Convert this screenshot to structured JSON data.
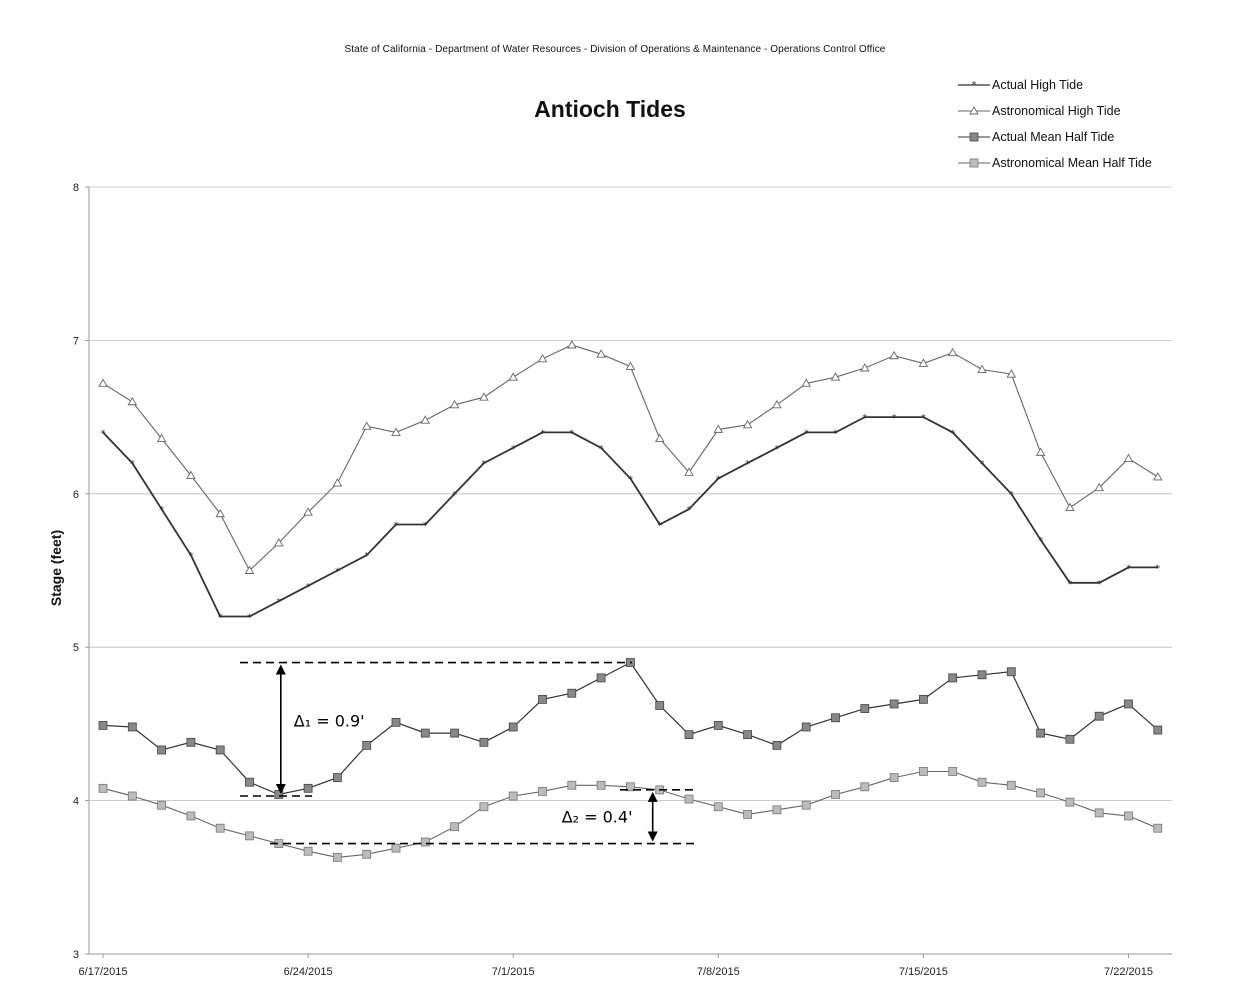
{
  "header": "State of California - Department of Water Resources - Division of Operations & Maintenance - Operations Control Office",
  "colors": {
    "axis": "#999999",
    "grid": "#bbbbbb",
    "actual": "#333333",
    "astronomical": "#666666",
    "annotation": "#000000"
  },
  "chart_data": {
    "type": "line",
    "title": "Antioch Tides",
    "xlabel": "",
    "ylabel": "Stage (feet)",
    "ylim": [
      3,
      8
    ],
    "yticks": [
      "3",
      "4",
      "5",
      "6",
      "7",
      "8"
    ],
    "xticks": [
      "6/17/2015",
      "6/24/2015",
      "7/1/2015",
      "7/8/2015",
      "7/15/2015",
      "7/22/2015"
    ],
    "grid": "horizontal",
    "legend": "top-right",
    "x": [
      "6/17/2015",
      "6/18/2015",
      "6/19/2015",
      "6/20/2015",
      "6/21/2015",
      "6/22/2015",
      "6/23/2015",
      "6/24/2015",
      "6/25/2015",
      "6/26/2015",
      "6/27/2015",
      "6/28/2015",
      "6/29/2015",
      "6/30/2015",
      "7/1/2015",
      "7/2/2015",
      "7/3/2015",
      "7/4/2015",
      "7/5/2015",
      "7/6/2015",
      "7/7/2015",
      "7/8/2015",
      "7/9/2015",
      "7/10/2015",
      "7/11/2015",
      "7/12/2015",
      "7/13/2015",
      "7/14/2015",
      "7/15/2015",
      "7/16/2015",
      "7/17/2015",
      "7/18/2015",
      "7/19/2015",
      "7/20/2015",
      "7/21/2015",
      "7/22/2015",
      "7/23/2015"
    ],
    "series": [
      {
        "name": "Actual High Tide",
        "marker": "star",
        "values": [
          6.4,
          6.2,
          5.9,
          5.6,
          5.2,
          5.2,
          5.3,
          5.4,
          5.5,
          5.6,
          5.8,
          5.8,
          6.0,
          6.2,
          6.3,
          6.4,
          6.4,
          6.3,
          6.1,
          5.8,
          5.9,
          6.1,
          6.2,
          6.3,
          6.4,
          6.4,
          6.5,
          6.5,
          6.5,
          6.4,
          6.2,
          6.0,
          5.7,
          5.42,
          5.42,
          5.52,
          5.52
        ]
      },
      {
        "name": "Astronomical High Tide",
        "marker": "triangle",
        "values": [
          6.72,
          6.6,
          6.36,
          6.12,
          5.87,
          5.5,
          5.68,
          5.88,
          6.07,
          6.44,
          6.4,
          6.48,
          6.58,
          6.63,
          6.76,
          6.88,
          6.97,
          6.91,
          6.83,
          6.36,
          6.14,
          6.42,
          6.45,
          6.58,
          6.72,
          6.76,
          6.82,
          6.9,
          6.85,
          6.92,
          6.81,
          6.78,
          6.27,
          5.91,
          6.04,
          6.23,
          6.11
        ]
      },
      {
        "name": "Actual Mean Half Tide",
        "marker": "square",
        "values": [
          4.49,
          4.48,
          4.33,
          4.38,
          4.33,
          4.12,
          4.04,
          4.08,
          4.15,
          4.36,
          4.51,
          4.44,
          4.44,
          4.38,
          4.48,
          4.66,
          4.7,
          4.8,
          4.9,
          4.62,
          4.43,
          4.49,
          4.43,
          4.36,
          4.48,
          4.54,
          4.6,
          4.63,
          4.66,
          4.8,
          4.82,
          4.84,
          4.44,
          4.4,
          4.55,
          4.63,
          4.46
        ]
      },
      {
        "name": "Astronomical Mean Half Tide",
        "marker": "square-light",
        "values": [
          4.08,
          4.03,
          3.97,
          3.9,
          3.82,
          3.77,
          3.72,
          3.67,
          3.63,
          3.65,
          3.69,
          3.73,
          3.83,
          3.96,
          4.03,
          4.06,
          4.1,
          4.1,
          4.09,
          4.07,
          4.01,
          3.96,
          3.91,
          3.94,
          3.97,
          4.04,
          4.09,
          4.15,
          4.19,
          4.19,
          4.12,
          4.1,
          4.05,
          3.99,
          3.92,
          3.9,
          3.82
        ]
      }
    ],
    "annotations": [
      {
        "label": "Δ₁ = 0.9'",
        "x": "6/23/2015",
        "from": 4.03,
        "to": 4.9
      },
      {
        "label": "Δ₂ = 0.4'",
        "x": "7/6/2015",
        "from": 3.72,
        "to": 4.07
      }
    ]
  }
}
